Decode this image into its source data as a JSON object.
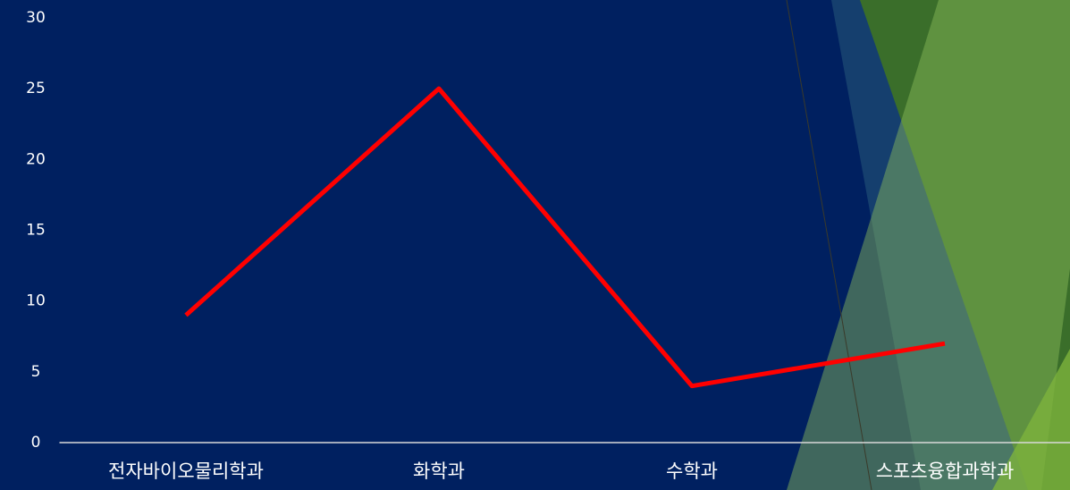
{
  "chart_data": {
    "type": "line",
    "categories": [
      "전자바이오물리학과",
      "화학과",
      "수학과",
      "스포츠융합과학과"
    ],
    "series": [
      {
        "values": [
          9,
          25,
          4,
          7
        ],
        "color": "#ff0000"
      }
    ],
    "ylim": [
      0,
      30
    ],
    "yticks": [
      0,
      5,
      10,
      15,
      20,
      25,
      30
    ]
  }
}
